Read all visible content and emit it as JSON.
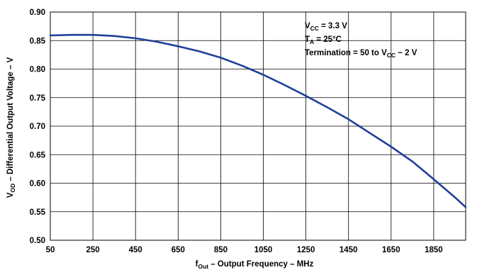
{
  "chart_data": {
    "type": "line",
    "title": "",
    "xlabel": {
      "main": "f",
      "sub": "Out",
      "rest": " – Output Frequency – MHz"
    },
    "ylabel": {
      "main": "V",
      "sub": "OD",
      "rest": " – Differential Output Voltage – V"
    },
    "xlim": [
      50,
      2000
    ],
    "ylim": [
      0.5,
      0.9
    ],
    "x_ticks": [
      50,
      250,
      450,
      650,
      850,
      1050,
      1250,
      1450,
      1650,
      1850
    ],
    "y_ticks": [
      "0.50",
      "0.55",
      "0.60",
      "0.65",
      "0.70",
      "0.75",
      "0.80",
      "0.85",
      "0.90"
    ],
    "x_grid": [
      50,
      250,
      450,
      650,
      850,
      1050,
      1250,
      1450,
      1650,
      1850
    ],
    "y_grid": [
      0.5,
      0.55,
      0.6,
      0.65,
      0.7,
      0.75,
      0.8,
      0.85,
      0.9
    ],
    "grid": true,
    "series": [
      {
        "name": "",
        "color": "#1f3f99",
        "points": [
          [
            50,
            0.859
          ],
          [
            150,
            0.86
          ],
          [
            250,
            0.86
          ],
          [
            350,
            0.858
          ],
          [
            450,
            0.854
          ],
          [
            550,
            0.848
          ],
          [
            650,
            0.84
          ],
          [
            750,
            0.831
          ],
          [
            850,
            0.82
          ],
          [
            950,
            0.806
          ],
          [
            1050,
            0.79
          ],
          [
            1150,
            0.772
          ],
          [
            1250,
            0.753
          ],
          [
            1350,
            0.733
          ],
          [
            1450,
            0.712
          ],
          [
            1550,
            0.688
          ],
          [
            1650,
            0.664
          ],
          [
            1750,
            0.638
          ],
          [
            1850,
            0.607
          ],
          [
            1950,
            0.575
          ],
          [
            2000,
            0.558
          ]
        ]
      }
    ],
    "annotations": [
      {
        "main": "V",
        "sub": "CC",
        "rest": " = 3.3 V"
      },
      {
        "main": "T",
        "sub": "A",
        "rest": " = 25°C"
      },
      {
        "main": "Termination = 50 to V",
        "sub": "CC",
        "rest": " − 2 V"
      }
    ],
    "annotation_position": "top-right"
  }
}
